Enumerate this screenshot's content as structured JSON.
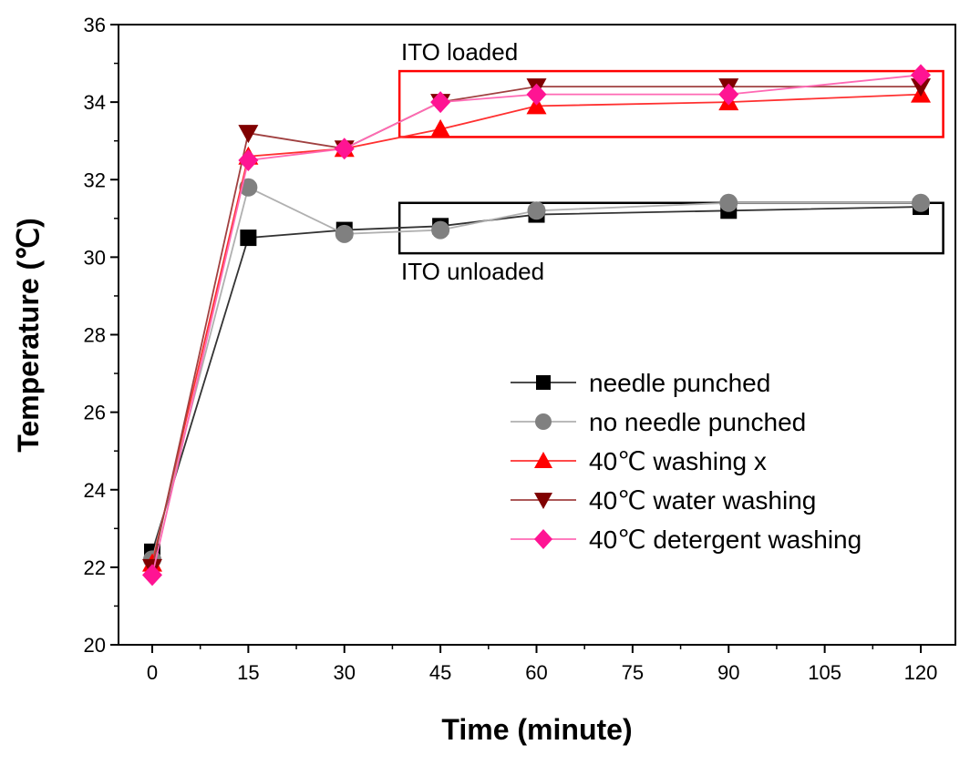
{
  "chart_data": {
    "type": "line",
    "xlabel": "Time (minute)",
    "ylabel": "Temperature (℃)",
    "x": [
      0,
      15,
      30,
      45,
      60,
      90,
      120
    ],
    "xticks": [
      0,
      15,
      30,
      45,
      60,
      75,
      90,
      105,
      120
    ],
    "yticks": [
      20,
      22,
      24,
      26,
      28,
      30,
      32,
      34,
      36
    ],
    "xlim": [
      -6,
      130
    ],
    "ylim": [
      20,
      36
    ],
    "grid": false,
    "legend_position": "center-right",
    "series": [
      {
        "name": "needle punched",
        "marker": "square",
        "color": "#000000",
        "line_color": "#333333",
        "values": [
          22.4,
          30.5,
          30.7,
          30.8,
          31.1,
          31.2,
          31.3
        ]
      },
      {
        "name": "no needle punched",
        "marker": "circle",
        "color": "#808080",
        "line_color": "#b0b0b0",
        "values": [
          22.2,
          31.8,
          30.6,
          30.7,
          31.2,
          31.4,
          31.4
        ]
      },
      {
        "name": "40℃ washing x",
        "marker": "triangle-up",
        "color": "#ff0000",
        "line_color": "#ff3030",
        "values": [
          22.1,
          32.6,
          32.8,
          33.3,
          33.9,
          34.0,
          34.2
        ]
      },
      {
        "name": "40℃ water washing",
        "marker": "triangle-down",
        "color": "#800000",
        "line_color": "#a04040",
        "values": [
          22.0,
          33.2,
          32.8,
          34.0,
          34.4,
          34.4,
          34.4
        ]
      },
      {
        "name": "40℃ detergent washing",
        "marker": "diamond",
        "color": "#ff1493",
        "line_color": "#ff69b4",
        "values": [
          21.8,
          32.5,
          32.8,
          34.0,
          34.2,
          34.2,
          34.7
        ]
      }
    ],
    "annotations": [
      {
        "text": "ITO loaded",
        "box_color": "#ff0000"
      },
      {
        "text": "ITO unloaded",
        "box_color": "#000000"
      }
    ]
  }
}
